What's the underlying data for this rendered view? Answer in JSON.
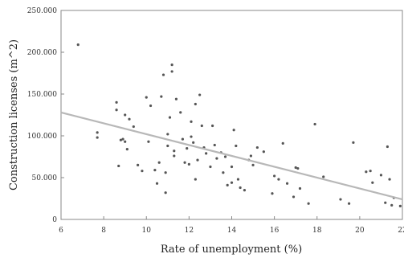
{
  "chart_data": {
    "type": "scatter",
    "title": "",
    "xlabel": "Rate of unemployment (%)",
    "ylabel": "Construction licenses (m^2)",
    "xlim": [
      6,
      22
    ],
    "ylim": [
      0,
      250000
    ],
    "xticks": [
      6,
      8,
      10,
      12,
      14,
      16,
      18,
      20,
      22
    ],
    "yticks": [
      0,
      50000,
      100000,
      150000,
      200000,
      250000
    ],
    "xtick_labels": [
      "6",
      "8",
      "10",
      "12",
      "14",
      "16",
      "18",
      "20",
      "22"
    ],
    "ytick_labels": [
      "0",
      "50.000",
      "100.000",
      "150.000",
      "200.000",
      "250.000"
    ],
    "grid": false,
    "point_color": "#555555",
    "trend_color": "#b8b8b8",
    "trend_line": {
      "x": [
        6,
        22
      ],
      "y": [
        128000,
        24000
      ]
    },
    "series": [
      {
        "x": [
          6.8,
          7.7,
          7.7,
          8.6,
          8.6,
          8.7,
          8.8,
          8.9,
          9.0,
          9.0,
          9.1,
          9.2,
          9.4,
          9.6,
          9.8,
          10.0,
          10.1,
          10.2,
          10.4,
          10.5,
          10.6,
          10.7,
          10.8,
          10.9,
          10.9,
          11.0,
          11.0,
          11.1,
          11.2,
          11.2,
          11.3,
          11.3,
          11.4,
          11.6,
          11.7,
          11.8,
          11.9,
          12.0,
          12.1,
          12.1,
          12.2,
          12.3,
          12.3,
          12.4,
          12.5,
          12.6,
          12.7,
          12.8,
          13.0,
          13.1,
          13.2,
          13.3,
          13.5,
          13.6,
          13.7,
          13.8,
          14.0,
          14.0,
          14.1,
          14.2,
          14.3,
          14.4,
          14.6,
          14.8,
          14.9,
          15.0,
          15.2,
          15.5,
          15.9,
          16.0,
          16.2,
          16.4,
          16.6,
          16.9,
          17.0,
          17.1,
          17.2,
          17.6,
          17.9,
          18.3,
          19.1,
          19.5,
          19.7,
          20.3,
          20.5,
          20.6,
          21.0,
          21.2,
          21.3,
          21.4,
          21.5,
          21.6,
          21.9
        ],
        "y": [
          209000,
          104000,
          98000,
          140000,
          131000,
          64000,
          95000,
          96000,
          125000,
          93000,
          84000,
          120000,
          111000,
          65000,
          58000,
          146000,
          93000,
          136000,
          59000,
          43000,
          68000,
          147000,
          173000,
          56000,
          32000,
          88000,
          102000,
          122000,
          185000,
          177000,
          82000,
          76000,
          144000,
          128000,
          96000,
          68000,
          85000,
          66000,
          117000,
          99000,
          92000,
          48000,
          138000,
          71000,
          149000,
          112000,
          86000,
          79000,
          63000,
          112000,
          89000,
          73000,
          80000,
          56000,
          75000,
          41000,
          44000,
          63000,
          107000,
          88000,
          48000,
          38000,
          35000,
          71000,
          76000,
          65000,
          86000,
          81000,
          31000,
          52000,
          48000,
          91000,
          43000,
          27000,
          62000,
          61000,
          37000,
          19000,
          114000,
          51000,
          24000,
          19000,
          92000,
          57000,
          58000,
          44000,
          53000,
          20000,
          87000,
          48000,
          17000,
          26000,
          16000
        ]
      }
    ]
  }
}
